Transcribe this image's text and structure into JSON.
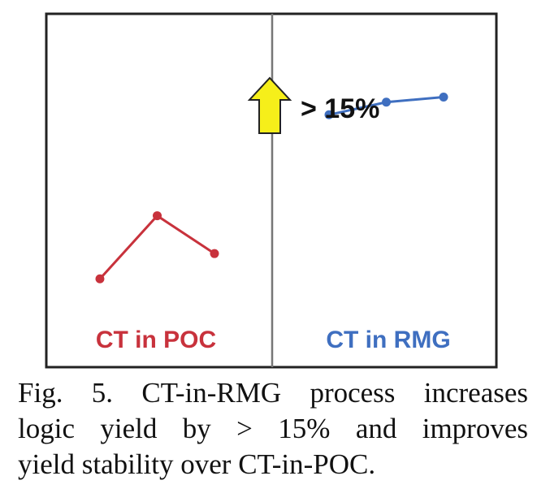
{
  "chart_data": {
    "type": "line",
    "panels": [
      {
        "label": "CT in POC",
        "color": "#c8323c",
        "values": [
          0.35,
          0.6,
          0.45
        ]
      },
      {
        "label": "CT in RMG",
        "color": "#3f6fc0",
        "values": [
          1.0,
          1.05,
          1.07
        ]
      }
    ],
    "ylim": [
      0,
      1.4
    ],
    "annotation": {
      "text": "> 15%",
      "arrow_color": "#f6ef1a"
    },
    "grid": false,
    "legend": "none"
  },
  "caption": {
    "line1": "Fig. 5. CT-in-RMG process increases",
    "line2": "logic yield by > 15% and improves",
    "line3": "yield stability over CT-in-POC."
  }
}
